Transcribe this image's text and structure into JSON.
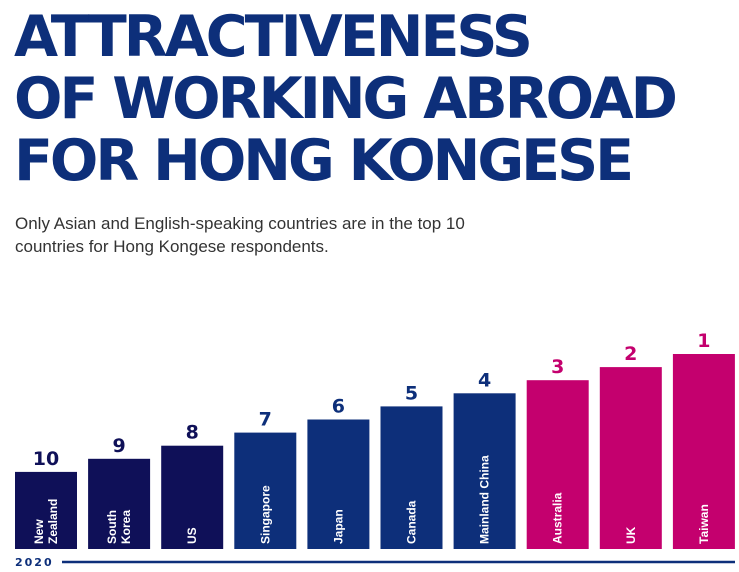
{
  "title_lines": [
    "ATTRACTIVENESS",
    "OF WORKING ABROAD",
    "FOR HONG KONGESE"
  ],
  "subtitle_lines": [
    "Only Asian and English-speaking countries are in the top 10",
    "countries for Hong Kongese respondents."
  ],
  "chart_data": {
    "type": "bar",
    "title": "ATTRACTIVENESS OF WORKING ABROAD FOR HONG KONGESE",
    "subtitle": "Only Asian and English-speaking countries are in the top 10 countries for Hong Kongese respondents.",
    "xlabel": "2020",
    "ylabel": "",
    "categories": [
      [
        "New",
        "Zealand"
      ],
      [
        "South",
        "Korea"
      ],
      [
        "US"
      ],
      [
        "Singapore"
      ],
      [
        "Japan"
      ],
      [
        "Canada"
      ],
      [
        "Mainland China"
      ],
      [
        "Australia"
      ],
      [
        "UK"
      ],
      [
        "Taiwan"
      ]
    ],
    "values": [
      10,
      9,
      8,
      7,
      6,
      5,
      4,
      3,
      2,
      1
    ],
    "colors": [
      "#0f1058",
      "#0f1058",
      "#0f1058",
      "#0d2f7a",
      "#0d2f7a",
      "#0d2f7a",
      "#0d2f7a",
      "#c4006e",
      "#c4006e",
      "#c4006e"
    ],
    "label_colors": [
      "#0f1058",
      "#0f1058",
      "#0f1058",
      "#0d2f7a",
      "#0d2f7a",
      "#0d2f7a",
      "#0d2f7a",
      "#c4006e",
      "#c4006e",
      "#c4006e"
    ],
    "grid": false,
    "legend": "none"
  }
}
